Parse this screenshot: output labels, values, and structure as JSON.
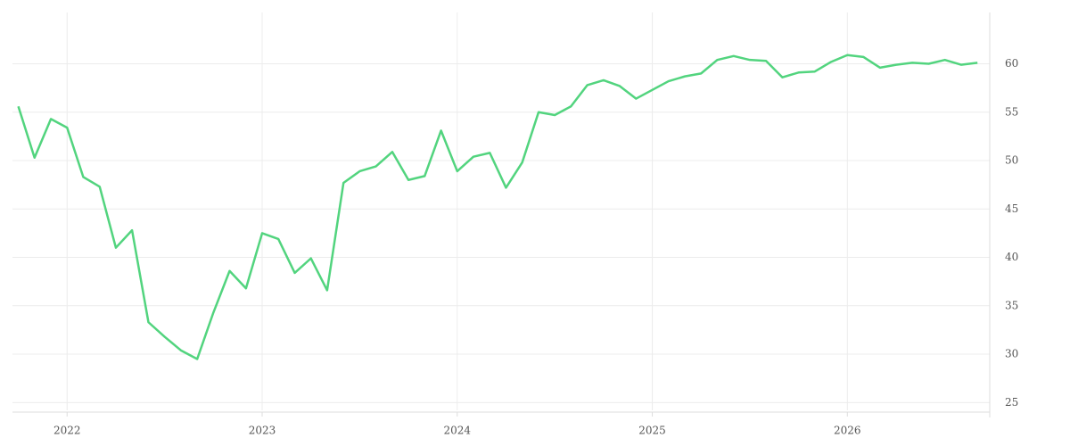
{
  "chart_data": {
    "type": "line",
    "x": [
      2021.75,
      2021.833,
      2021.917,
      2022,
      2022.083,
      2022.167,
      2022.25,
      2022.333,
      2022.417,
      2022.5,
      2022.583,
      2022.667,
      2022.75,
      2022.833,
      2022.917,
      2023,
      2023.083,
      2023.167,
      2023.25,
      2023.333,
      2023.417,
      2023.5,
      2023.583,
      2023.667,
      2023.75,
      2023.833,
      2023.917,
      2024,
      2024.083,
      2024.167,
      2024.25,
      2024.333,
      2024.417,
      2024.5,
      2024.583,
      2024.667,
      2024.75,
      2024.833,
      2024.917,
      2025,
      2025.083,
      2025.167,
      2025.25,
      2025.333,
      2025.417,
      2025.5,
      2025.583,
      2025.667,
      2025.75,
      2025.833,
      2025.917,
      2026,
      2026.083,
      2026.167,
      2026.25,
      2026.333,
      2026.417,
      2026.5,
      2026.583,
      2026.667
    ],
    "series": [
      {
        "color": "#52d47e",
        "values": [
          55.6,
          50.3,
          54.3,
          53.4,
          48.3,
          47.3,
          41.0,
          42.8,
          33.3,
          31.8,
          30.4,
          29.5,
          34.3,
          38.6,
          36.8,
          42.5,
          41.9,
          38.4,
          39.9,
          36.6,
          47.7,
          48.9,
          49.4,
          50.9,
          48.0,
          48.4,
          53.1,
          48.9,
          50.4,
          50.8,
          47.2,
          49.8,
          55.0,
          54.7,
          55.6,
          57.8,
          58.3,
          57.7,
          56.4,
          57.3,
          58.2,
          58.7,
          59.0,
          60.4,
          60.8,
          60.4,
          60.3,
          58.6,
          59.1,
          59.2,
          60.2,
          60.9,
          60.7,
          59.6,
          59.9,
          60.1,
          60.0,
          60.4,
          59.9,
          60.1
        ]
      }
    ],
    "xlim": [
      2021.72,
      2026.73
    ],
    "xticks": [
      2022,
      2023,
      2024,
      2025,
      2026
    ],
    "ylim": [
      24.2,
      65.3
    ],
    "yticks": [
      25,
      30,
      35,
      40,
      45,
      50,
      55,
      60
    ],
    "grid": true
  }
}
